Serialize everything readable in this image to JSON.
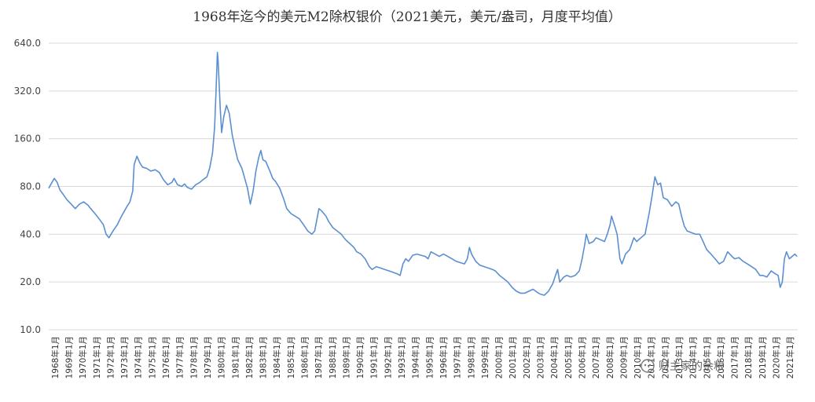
{
  "chart_data": {
    "type": "line",
    "title": "1968年迄今的美元M2除权银价（2021美元，美元/盎司，月度平均值）",
    "y_scale": "log2",
    "ylim": [
      10,
      640
    ],
    "y_ticks": [
      "640.0",
      "320.0",
      "160.0",
      "80.0",
      "40.0",
      "20.0",
      "10.0"
    ],
    "y_tick_values": [
      640,
      320,
      160,
      80,
      40,
      20,
      10
    ],
    "x_tick_labels": [
      "1968年1月",
      "1969年1月",
      "1970年1月",
      "1971年1月",
      "1972年1月",
      "1973年1月",
      "1974年1月",
      "1975年1月",
      "1976年1月",
      "1977年1月",
      "1978年1月",
      "1979年1月",
      "1980年1月",
      "1981年1月",
      "1982年1月",
      "1983年1月",
      "1984年1月",
      "1985年1月",
      "1986年1月",
      "1987年1月",
      "1988年1月",
      "1989年1月",
      "1990年1月",
      "1991年1月",
      "1992年1月",
      "1993年1月",
      "1994年1月",
      "1995年1月",
      "1996年1月",
      "1997年1月",
      "1998年1月",
      "1999年1月",
      "2000年1月",
      "2001年1月",
      "2002年1月",
      "2003年1月",
      "2004年1月",
      "2005年1月",
      "2006年1月",
      "2007年1月",
      "2008年1月",
      "2009年1月",
      "2010年1月",
      "2011年1月",
      "2012年1月",
      "2013年1月",
      "2014年1月",
      "2015年1月",
      "2016年1月",
      "2017年1月",
      "2018年1月",
      "2019年1月",
      "2020年1月",
      "2021年1月"
    ],
    "xlim": [
      1968.0,
      2021.5
    ],
    "grid": true,
    "series": [
      {
        "color": "#5b8fd0",
        "points": [
          [
            1968.0,
            78
          ],
          [
            1968.2,
            84
          ],
          [
            1968.4,
            90
          ],
          [
            1968.6,
            85
          ],
          [
            1968.8,
            76
          ],
          [
            1969.0,
            72
          ],
          [
            1969.3,
            66
          ],
          [
            1969.6,
            62
          ],
          [
            1969.9,
            58
          ],
          [
            1970.2,
            62
          ],
          [
            1970.5,
            64
          ],
          [
            1970.8,
            61
          ],
          [
            1971.0,
            58
          ],
          [
            1971.3,
            54
          ],
          [
            1971.6,
            50
          ],
          [
            1971.9,
            46
          ],
          [
            1972.1,
            40
          ],
          [
            1972.3,
            38
          ],
          [
            1972.6,
            42
          ],
          [
            1972.9,
            46
          ],
          [
            1973.2,
            52
          ],
          [
            1973.5,
            58
          ],
          [
            1973.8,
            64
          ],
          [
            1974.0,
            75
          ],
          [
            1974.1,
            110
          ],
          [
            1974.3,
            124
          ],
          [
            1974.5,
            113
          ],
          [
            1974.7,
            106
          ],
          [
            1975.0,
            104
          ],
          [
            1975.3,
            100
          ],
          [
            1975.6,
            102
          ],
          [
            1975.9,
            98
          ],
          [
            1976.2,
            88
          ],
          [
            1976.5,
            82
          ],
          [
            1976.8,
            85
          ],
          [
            1976.95,
            90
          ],
          [
            1977.2,
            82
          ],
          [
            1977.5,
            80
          ],
          [
            1977.7,
            83
          ],
          [
            1977.9,
            79
          ],
          [
            1978.2,
            77
          ],
          [
            1978.5,
            82
          ],
          [
            1978.8,
            85
          ],
          [
            1979.0,
            88
          ],
          [
            1979.3,
            92
          ],
          [
            1979.5,
            105
          ],
          [
            1979.7,
            130
          ],
          [
            1979.85,
            190
          ],
          [
            1979.95,
            320
          ],
          [
            1980.05,
            560
          ],
          [
            1980.1,
            500
          ],
          [
            1980.25,
            250
          ],
          [
            1980.35,
            175
          ],
          [
            1980.5,
            220
          ],
          [
            1980.7,
            260
          ],
          [
            1980.9,
            230
          ],
          [
            1981.1,
            170
          ],
          [
            1981.3,
            140
          ],
          [
            1981.5,
            118
          ],
          [
            1981.8,
            104
          ],
          [
            1982.0,
            90
          ],
          [
            1982.2,
            78
          ],
          [
            1982.4,
            62
          ],
          [
            1982.6,
            75
          ],
          [
            1982.8,
            100
          ],
          [
            1983.0,
            122
          ],
          [
            1983.15,
            135
          ],
          [
            1983.3,
            118
          ],
          [
            1983.5,
            115
          ],
          [
            1983.8,
            100
          ],
          [
            1984.0,
            90
          ],
          [
            1984.2,
            86
          ],
          [
            1984.5,
            78
          ],
          [
            1984.8,
            66
          ],
          [
            1985.0,
            58
          ],
          [
            1985.3,
            54
          ],
          [
            1985.6,
            52
          ],
          [
            1985.9,
            50
          ],
          [
            1986.2,
            46
          ],
          [
            1986.5,
            42
          ],
          [
            1986.8,
            40
          ],
          [
            1987.0,
            42
          ],
          [
            1987.2,
            52
          ],
          [
            1987.3,
            58
          ],
          [
            1987.5,
            56
          ],
          [
            1987.8,
            52
          ],
          [
            1988.0,
            48
          ],
          [
            1988.3,
            44
          ],
          [
            1988.6,
            42
          ],
          [
            1988.9,
            40
          ],
          [
            1989.2,
            37
          ],
          [
            1989.5,
            35
          ],
          [
            1989.8,
            33
          ],
          [
            1990.0,
            31
          ],
          [
            1990.3,
            30
          ],
          [
            1990.6,
            28
          ],
          [
            1990.9,
            25
          ],
          [
            1991.1,
            24
          ],
          [
            1991.4,
            25
          ],
          [
            1991.7,
            24.5
          ],
          [
            1992.0,
            24
          ],
          [
            1992.3,
            23.5
          ],
          [
            1992.6,
            23
          ],
          [
            1992.9,
            22.5
          ],
          [
            1993.1,
            22
          ],
          [
            1993.3,
            26
          ],
          [
            1993.5,
            28
          ],
          [
            1993.7,
            27
          ],
          [
            1994.0,
            29.5
          ],
          [
            1994.3,
            30
          ],
          [
            1994.6,
            29.5
          ],
          [
            1994.9,
            29
          ],
          [
            1995.1,
            28
          ],
          [
            1995.3,
            31
          ],
          [
            1995.6,
            30
          ],
          [
            1995.9,
            29
          ],
          [
            1996.2,
            30
          ],
          [
            1996.5,
            29
          ],
          [
            1996.8,
            28
          ],
          [
            1997.1,
            27
          ],
          [
            1997.4,
            26.5
          ],
          [
            1997.7,
            26
          ],
          [
            1997.9,
            28
          ],
          [
            1998.05,
            33
          ],
          [
            1998.2,
            30
          ],
          [
            1998.5,
            27
          ],
          [
            1998.8,
            25.5
          ],
          [
            1999.1,
            25
          ],
          [
            1999.4,
            24.5
          ],
          [
            1999.7,
            24
          ],
          [
            1999.9,
            23.5
          ],
          [
            2000.2,
            22
          ],
          [
            2000.5,
            21
          ],
          [
            2000.8,
            20
          ],
          [
            2001.1,
            18.5
          ],
          [
            2001.4,
            17.5
          ],
          [
            2001.7,
            17
          ],
          [
            2002.0,
            17
          ],
          [
            2002.3,
            17.5
          ],
          [
            2002.6,
            18
          ],
          [
            2002.9,
            17.2
          ],
          [
            2003.1,
            16.8
          ],
          [
            2003.4,
            16.5
          ],
          [
            2003.7,
            17.5
          ],
          [
            2004.0,
            19.5
          ],
          [
            2004.2,
            22
          ],
          [
            2004.35,
            24
          ],
          [
            2004.5,
            20
          ],
          [
            2004.8,
            21.5
          ],
          [
            2005.0,
            22
          ],
          [
            2005.3,
            21.5
          ],
          [
            2005.6,
            22
          ],
          [
            2005.9,
            23.5
          ],
          [
            2006.1,
            28
          ],
          [
            2006.3,
            35
          ],
          [
            2006.4,
            40
          ],
          [
            2006.6,
            35
          ],
          [
            2006.9,
            36
          ],
          [
            2007.1,
            38
          ],
          [
            2007.4,
            37
          ],
          [
            2007.7,
            36
          ],
          [
            2007.9,
            40
          ],
          [
            2008.1,
            46
          ],
          [
            2008.2,
            52
          ],
          [
            2008.4,
            46
          ],
          [
            2008.6,
            40
          ],
          [
            2008.8,
            28
          ],
          [
            2008.95,
            26
          ],
          [
            2009.2,
            30
          ],
          [
            2009.5,
            32
          ],
          [
            2009.8,
            38
          ],
          [
            2010.0,
            36
          ],
          [
            2010.3,
            38
          ],
          [
            2010.6,
            40
          ],
          [
            2010.9,
            55
          ],
          [
            2011.1,
            70
          ],
          [
            2011.3,
            92
          ],
          [
            2011.5,
            82
          ],
          [
            2011.7,
            84
          ],
          [
            2011.9,
            68
          ],
          [
            2012.2,
            66
          ],
          [
            2012.5,
            60
          ],
          [
            2012.8,
            64
          ],
          [
            2013.0,
            62
          ],
          [
            2013.2,
            52
          ],
          [
            2013.4,
            45
          ],
          [
            2013.6,
            42
          ],
          [
            2013.9,
            41
          ],
          [
            2014.2,
            40
          ],
          [
            2014.5,
            40
          ],
          [
            2014.8,
            35
          ],
          [
            2015.0,
            32
          ],
          [
            2015.3,
            30
          ],
          [
            2015.6,
            28
          ],
          [
            2015.9,
            26
          ],
          [
            2016.2,
            27
          ],
          [
            2016.5,
            31
          ],
          [
            2016.8,
            29
          ],
          [
            2017.0,
            28
          ],
          [
            2017.3,
            28.5
          ],
          [
            2017.6,
            27
          ],
          [
            2017.9,
            26
          ],
          [
            2018.2,
            25
          ],
          [
            2018.5,
            24
          ],
          [
            2018.8,
            22
          ],
          [
            2019.0,
            22
          ],
          [
            2019.3,
            21.5
          ],
          [
            2019.6,
            23.5
          ],
          [
            2019.9,
            22.5
          ],
          [
            2020.1,
            22
          ],
          [
            2020.25,
            18.5
          ],
          [
            2020.4,
            20
          ],
          [
            2020.55,
            28
          ],
          [
            2020.7,
            31
          ],
          [
            2020.9,
            28
          ],
          [
            2021.1,
            29
          ],
          [
            2021.3,
            30
          ],
          [
            2021.45,
            29
          ]
        ]
      }
    ]
  },
  "watermark": {
    "text": "财主家的余粮"
  }
}
